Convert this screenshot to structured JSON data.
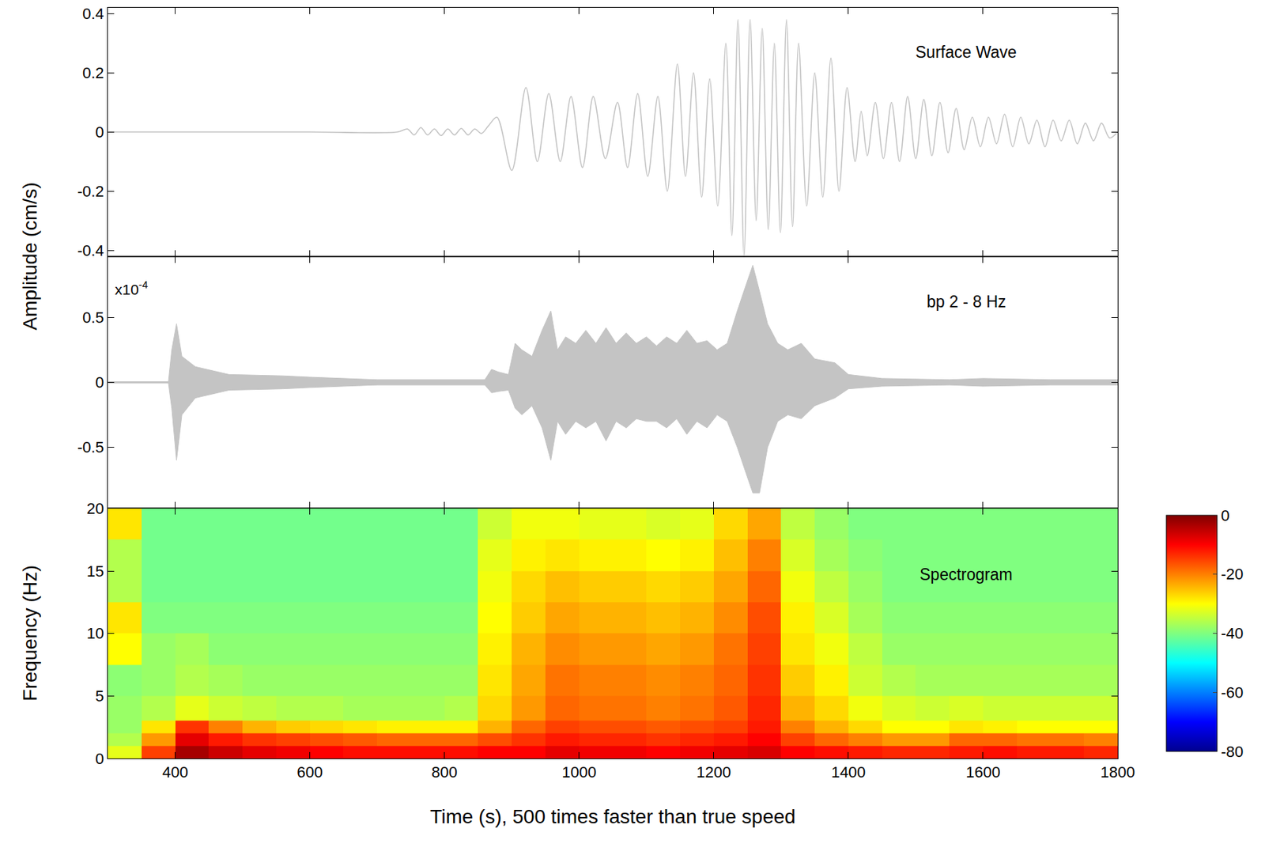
{
  "chart_data": [
    {
      "type": "line",
      "title": "Surface Wave",
      "y_title": "Amplitude (cm/s)",
      "color": "#c4c4c4",
      "x": [
        300,
        600,
        730,
        745,
        755,
        765,
        775,
        785,
        795,
        805,
        815,
        825,
        835,
        845,
        855,
        865,
        878,
        900,
        921,
        938,
        955,
        972,
        988,
        1005,
        1021,
        1039,
        1057,
        1072,
        1087,
        1102,
        1117,
        1131,
        1146,
        1158,
        1170,
        1182,
        1194,
        1206,
        1218,
        1227,
        1236,
        1245,
        1254,
        1263,
        1272,
        1281,
        1290,
        1299,
        1308,
        1317,
        1326,
        1338,
        1350,
        1362,
        1374,
        1386,
        1398,
        1410,
        1419,
        1428,
        1440,
        1452,
        1464,
        1476,
        1488,
        1500,
        1512,
        1524,
        1536,
        1548,
        1560,
        1572,
        1584,
        1596,
        1608,
        1620,
        1632,
        1644,
        1656,
        1668,
        1680,
        1692,
        1704,
        1716,
        1728,
        1740,
        1752,
        1764,
        1776,
        1788,
        1800
      ],
      "values": [
        0,
        0,
        0,
        0.01,
        -0.01,
        0.015,
        -0.01,
        0.01,
        -0.012,
        0.01,
        -0.01,
        0.012,
        -0.01,
        0.01,
        -0.005,
        0.02,
        0.05,
        -0.13,
        0.15,
        -0.1,
        0.13,
        -0.1,
        0.12,
        -0.12,
        0.12,
        -0.09,
        0.1,
        -0.12,
        0.13,
        -0.15,
        0.12,
        -0.2,
        0.23,
        -0.15,
        0.2,
        -0.22,
        0.18,
        -0.25,
        0.3,
        -0.35,
        0.38,
        -0.42,
        0.38,
        -0.3,
        0.35,
        -0.33,
        0.3,
        -0.34,
        0.38,
        -0.32,
        0.3,
        -0.25,
        0.2,
        -0.22,
        0.25,
        -0.2,
        0.15,
        -0.1,
        0.07,
        -0.08,
        0.1,
        -0.09,
        0.1,
        -0.1,
        0.12,
        -0.09,
        0.11,
        -0.08,
        0.1,
        -0.07,
        0.08,
        -0.06,
        0.05,
        -0.05,
        0.05,
        -0.04,
        0.06,
        -0.05,
        0.05,
        -0.04,
        0.04,
        -0.05,
        0.04,
        -0.03,
        0.04,
        -0.04,
        0.03,
        -0.03,
        0.03,
        -0.02,
        0
      ],
      "xlim": [
        300,
        1800
      ],
      "xticks": [
        400,
        600,
        800,
        1000,
        1200,
        1400,
        1600,
        1800
      ],
      "ylim": [
        -0.42,
        0.42
      ],
      "yticks": [
        -0.4,
        -0.2,
        0,
        0.2,
        0.4
      ],
      "grid": false,
      "tick_labels": "y"
    },
    {
      "type": "envelope",
      "title": "bp 2 - 8 Hz",
      "multiplier": {
        "base": "x10",
        "exponent": "-4"
      },
      "color": "#c4c4c4",
      "x": [
        300,
        390,
        395,
        402,
        410,
        430,
        480,
        560,
        600,
        700,
        860,
        870,
        880,
        895,
        905,
        915,
        930,
        945,
        958,
        968,
        980,
        995,
        1010,
        1025,
        1040,
        1055,
        1070,
        1085,
        1100,
        1115,
        1130,
        1145,
        1160,
        1175,
        1190,
        1205,
        1220,
        1235,
        1248,
        1258,
        1268,
        1280,
        1295,
        1310,
        1330,
        1350,
        1380,
        1400,
        1450,
        1550,
        1600,
        1700,
        1800
      ],
      "upper": [
        0.005,
        0.005,
        0.25,
        0.45,
        0.2,
        0.12,
        0.06,
        0.05,
        0.04,
        0.02,
        0.02,
        0.1,
        0.08,
        0.06,
        0.3,
        0.25,
        0.2,
        0.4,
        0.55,
        0.25,
        0.35,
        0.3,
        0.4,
        0.3,
        0.42,
        0.3,
        0.38,
        0.3,
        0.35,
        0.28,
        0.35,
        0.3,
        0.4,
        0.3,
        0.32,
        0.25,
        0.3,
        0.55,
        0.75,
        0.9,
        0.7,
        0.45,
        0.3,
        0.25,
        0.3,
        0.18,
        0.15,
        0.06,
        0.03,
        0.02,
        0.03,
        0.02,
        0.02
      ],
      "lower": [
        -0.005,
        -0.005,
        -0.2,
        -0.6,
        -0.25,
        -0.12,
        -0.06,
        -0.05,
        -0.04,
        -0.02,
        -0.02,
        -0.08,
        -0.07,
        -0.06,
        -0.2,
        -0.25,
        -0.18,
        -0.35,
        -0.6,
        -0.3,
        -0.4,
        -0.3,
        -0.35,
        -0.3,
        -0.45,
        -0.3,
        -0.35,
        -0.28,
        -0.3,
        -0.3,
        -0.35,
        -0.28,
        -0.4,
        -0.3,
        -0.35,
        -0.25,
        -0.3,
        -0.5,
        -0.7,
        -0.85,
        -0.85,
        -0.5,
        -0.3,
        -0.25,
        -0.28,
        -0.18,
        -0.12,
        -0.05,
        -0.03,
        -0.02,
        -0.03,
        -0.02,
        -0.02
      ],
      "xlim": [
        300,
        1800
      ],
      "xticks": [
        400,
        600,
        800,
        1000,
        1200,
        1400,
        1600,
        1800
      ],
      "ylim": [
        -0.97,
        0.97
      ],
      "yticks": [
        -0.5,
        0,
        0.5
      ],
      "grid": false,
      "tick_labels": "y"
    },
    {
      "type": "heatmap",
      "title": "Spectrogram",
      "x_title": "Time (s), 500 times faster than true speed",
      "y_title": "Frequency (Hz)",
      "color": "jet",
      "xbins": [
        300,
        350,
        400,
        450,
        500,
        550,
        600,
        650,
        700,
        750,
        800,
        850,
        900,
        950,
        1000,
        1050,
        1100,
        1150,
        1200,
        1250,
        1300,
        1350,
        1400,
        1450,
        1500,
        1550,
        1600,
        1650,
        1700,
        1750,
        1800
      ],
      "ybins": [
        0,
        1,
        2,
        3,
        5,
        7.5,
        10,
        12.5,
        15,
        17.5,
        20
      ],
      "z": [
        [
          -32,
          -15,
          -3,
          -6,
          -8,
          -9,
          -10,
          -11,
          -11,
          -11,
          -11,
          -10,
          -10,
          -8,
          -9,
          -9,
          -10,
          -9,
          -8,
          -7,
          -10,
          -11,
          -12,
          -13,
          -13,
          -12,
          -11,
          -12,
          -12,
          -13
        ],
        [
          -36,
          -22,
          -8,
          -12,
          -14,
          -15,
          -16,
          -17,
          -18,
          -18,
          -18,
          -16,
          -14,
          -12,
          -13,
          -13,
          -14,
          -13,
          -12,
          -10,
          -15,
          -18,
          -20,
          -22,
          -22,
          -18,
          -18,
          -19,
          -19,
          -20
        ],
        [
          -38,
          -28,
          -14,
          -20,
          -24,
          -26,
          -27,
          -28,
          -29,
          -29,
          -29,
          -24,
          -18,
          -15,
          -16,
          -16,
          -17,
          -16,
          -15,
          -12,
          -20,
          -24,
          -27,
          -30,
          -30,
          -28,
          -29,
          -30,
          -30,
          -30
        ],
        [
          -38,
          -36,
          -32,
          -34,
          -35,
          -36,
          -36,
          -37,
          -37,
          -37,
          -36,
          -27,
          -22,
          -18,
          -19,
          -19,
          -20,
          -19,
          -17,
          -13,
          -24,
          -27,
          -31,
          -33,
          -34,
          -33,
          -34,
          -34,
          -34,
          -34
        ],
        [
          -39,
          -38,
          -36,
          -37,
          -38,
          -38,
          -38,
          -38,
          -38,
          -38,
          -38,
          -28,
          -23,
          -19,
          -20,
          -20,
          -21,
          -20,
          -18,
          -14,
          -26,
          -29,
          -34,
          -36,
          -37,
          -37,
          -37,
          -37,
          -37,
          -37
        ],
        [
          -30,
          -38,
          -37,
          -39,
          -39,
          -39,
          -39,
          -39,
          -39,
          -39,
          -39,
          -29,
          -24,
          -21,
          -22,
          -22,
          -23,
          -22,
          -19,
          -15,
          -28,
          -31,
          -35,
          -38,
          -38,
          -38,
          -38,
          -38,
          -38,
          -38
        ],
        [
          -28,
          -40,
          -40,
          -40,
          -40,
          -40,
          -40,
          -40,
          -40,
          -40,
          -40,
          -30,
          -26,
          -23,
          -24,
          -24,
          -25,
          -24,
          -21,
          -16,
          -29,
          -33,
          -37,
          -39,
          -39,
          -39,
          -39,
          -39,
          -39,
          -39
        ],
        [
          -36,
          -41,
          -41,
          -41,
          -41,
          -41,
          -41,
          -41,
          -41,
          -41,
          -41,
          -31,
          -27,
          -25,
          -26,
          -26,
          -27,
          -26,
          -23,
          -18,
          -31,
          -35,
          -38,
          -40,
          -40,
          -40,
          -40,
          -40,
          -40,
          -40
        ],
        [
          -36,
          -41,
          -41,
          -41,
          -41,
          -41,
          -41,
          -41,
          -41,
          -41,
          -41,
          -32,
          -29,
          -28,
          -29,
          -29,
          -30,
          -29,
          -25,
          -20,
          -33,
          -37,
          -39,
          -40,
          -40,
          -40,
          -40,
          -40,
          -40,
          -40
        ],
        [
          -28,
          -41,
          -41,
          -41,
          -41,
          -41,
          -41,
          -41,
          -41,
          -41,
          -41,
          -34,
          -31,
          -31,
          -32,
          -32,
          -33,
          -32,
          -27,
          -23,
          -35,
          -38,
          -40,
          -40,
          -40,
          -40,
          -40,
          -40,
          -40,
          -40
        ]
      ],
      "zlim": [
        -80,
        0
      ],
      "zticks": [
        0,
        -20,
        -40,
        -60,
        -80
      ],
      "xlim": [
        300,
        1800
      ],
      "xticks": [
        400,
        600,
        800,
        1000,
        1200,
        1400,
        1600,
        1800
      ],
      "ylim": [
        0,
        20
      ],
      "yticks": [
        0,
        5,
        10,
        15,
        20
      ],
      "grid": false
    }
  ]
}
